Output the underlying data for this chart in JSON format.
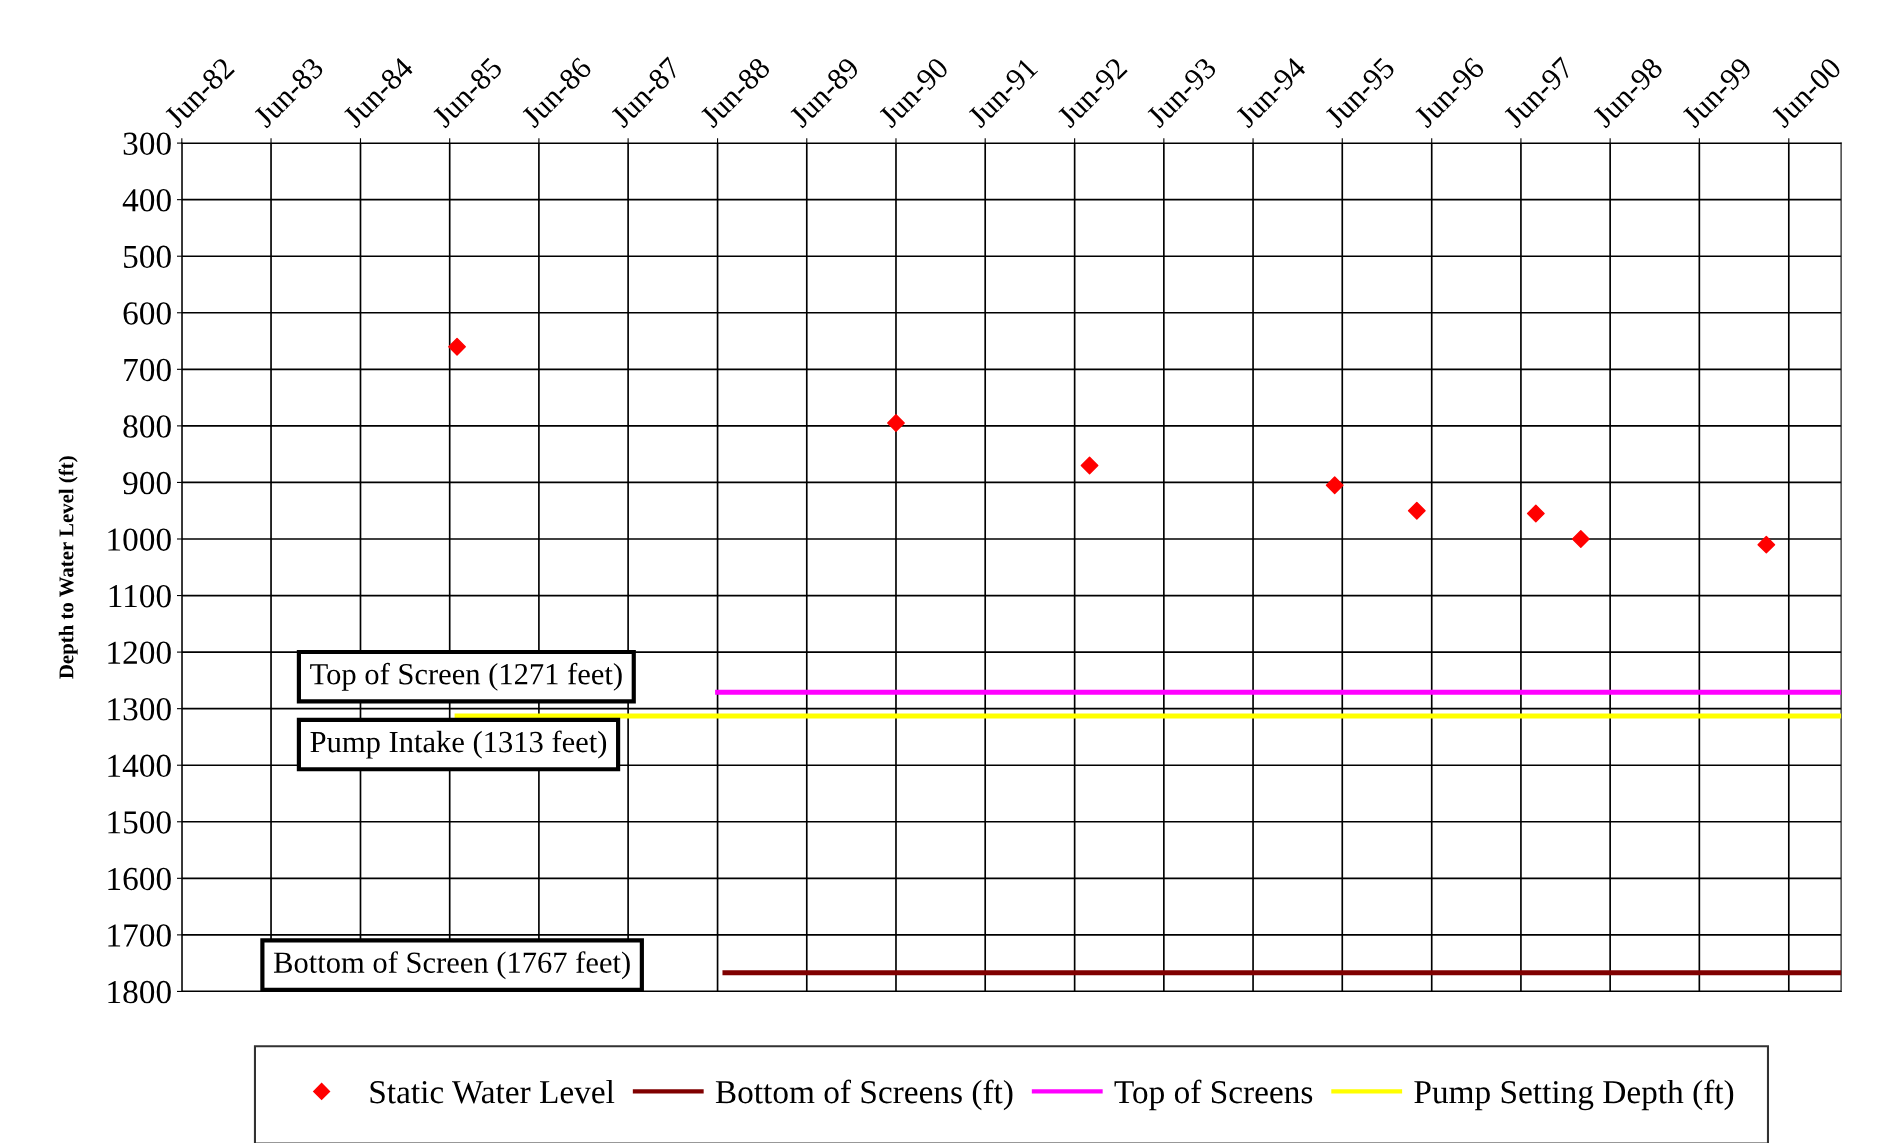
{
  "chart_data": {
    "type": "scatter",
    "ylabel": "Depth to Water Level (ft)",
    "xlim": [
      "1982-06",
      "2001-01"
    ],
    "xticks": [
      {
        "value": "1982-06",
        "label": "Jun-82"
      },
      {
        "value": "1983-06",
        "label": "Jun-83"
      },
      {
        "value": "1984-06",
        "label": "Jun-84"
      },
      {
        "value": "1985-06",
        "label": "Jun-85"
      },
      {
        "value": "1986-06",
        "label": "Jun-86"
      },
      {
        "value": "1987-06",
        "label": "Jun-87"
      },
      {
        "value": "1988-06",
        "label": "Jun-88"
      },
      {
        "value": "1989-06",
        "label": "Jun-89"
      },
      {
        "value": "1990-06",
        "label": "Jun-90"
      },
      {
        "value": "1991-06",
        "label": "Jun-91"
      },
      {
        "value": "1992-06",
        "label": "Jun-92"
      },
      {
        "value": "1993-06",
        "label": "Jun-93"
      },
      {
        "value": "1994-06",
        "label": "Jun-94"
      },
      {
        "value": "1995-06",
        "label": "Jun-95"
      },
      {
        "value": "1996-06",
        "label": "Jun-96"
      },
      {
        "value": "1997-06",
        "label": "Jun-97"
      },
      {
        "value": "1998-06",
        "label": "Jun-98"
      },
      {
        "value": "1999-06",
        "label": "Jun-99"
      },
      {
        "value": "2000-06",
        "label": "Jun-00"
      }
    ],
    "ylim": [
      1800,
      300
    ],
    "yticks": [
      300,
      400,
      500,
      600,
      700,
      800,
      900,
      1000,
      1100,
      1200,
      1300,
      1400,
      1500,
      1600,
      1700,
      1800
    ],
    "grid": true,
    "legend": "bottom",
    "series": [
      {
        "name": "Static Water Level",
        "marker": "diamond",
        "color": "#ff0000",
        "x": [
          "1985-07",
          "1990-06",
          "1992-08",
          "1995-05",
          "1996-04",
          "1997-08",
          "1998-02",
          "2000-03"
        ],
        "values": [
          660,
          795,
          870,
          905,
          950,
          955,
          1000,
          1010
        ]
      },
      {
        "name": "Bottom of Screens (ft)",
        "type": "line",
        "color": "#800000",
        "x": [
          "1988-07",
          "2001-01"
        ],
        "values": [
          1767,
          1767
        ]
      },
      {
        "name": "Top of Screens",
        "type": "line",
        "color": "#ff00ff",
        "x": [
          "1988-06",
          "2001-01"
        ],
        "values": [
          1271,
          1271
        ]
      },
      {
        "name": "Pump Setting Depth (ft)",
        "type": "line",
        "color": "#ffff00",
        "x": [
          "1985-07",
          "2001-01"
        ],
        "values": [
          1313,
          1313
        ]
      }
    ],
    "annotations": [
      "Top of Screen (1271 feet)",
      "Pump Intake (1313 feet)",
      "Bottom of Screen (1767 feet)"
    ]
  }
}
